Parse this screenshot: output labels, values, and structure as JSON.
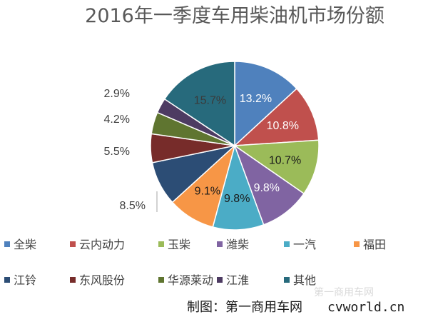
{
  "chart_data": {
    "type": "pie",
    "title": "2016年一季度车用柴油机市场份额",
    "slices": [
      {
        "name": "全柴",
        "value": 13.2,
        "label": "13.2%",
        "color": "#4F81BD"
      },
      {
        "name": "云内动力",
        "value": 10.8,
        "label": "10.8%",
        "color": "#C0504D"
      },
      {
        "name": "玉柴",
        "value": 10.7,
        "label": "10.7%",
        "color": "#9BBB59"
      },
      {
        "name": "潍柴",
        "value": 9.8,
        "label": "9.8%",
        "color": "#8064A2"
      },
      {
        "name": "一汽",
        "value": 9.8,
        "label": "9.8%",
        "color": "#4BACC6"
      },
      {
        "name": "福田",
        "value": 9.1,
        "label": "9.1%",
        "color": "#F79646"
      },
      {
        "name": "江铃",
        "value": 8.5,
        "label": "8.5%",
        "color": "#2C4D75"
      },
      {
        "name": "东风股份",
        "value": 5.5,
        "label": "5.5%",
        "color": "#772C2A"
      },
      {
        "name": "华源莱动",
        "value": 4.2,
        "label": "4.2%",
        "color": "#5F7530"
      },
      {
        "name": "江淮",
        "value": 2.9,
        "label": "2.9%",
        "color": "#4D3B62"
      },
      {
        "name": "其他",
        "value": 15.7,
        "label": "15.7%",
        "color": "#276A7C"
      }
    ],
    "start_angle_deg": 0,
    "direction": "clockwise",
    "legend_placement": "bottom"
  },
  "footer": {
    "credit_label": "制图：第一商用车网",
    "credit_site": "cvworld.cn",
    "watermark": "第一商用车网"
  }
}
